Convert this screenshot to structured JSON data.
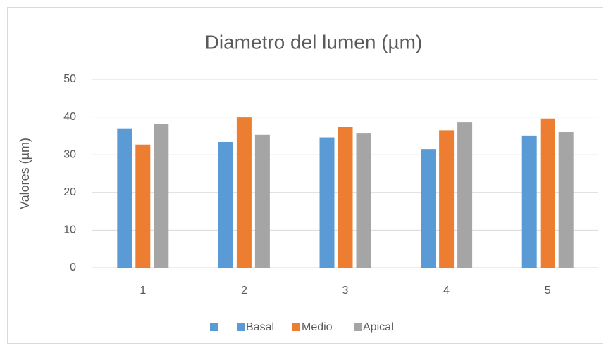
{
  "chart_data": {
    "type": "bar",
    "title": "Diametro del lumen (µm)",
    "y_label": "Valores (µm)",
    "categories": [
      "1",
      "2",
      "3",
      "4",
      "5"
    ],
    "series": [
      {
        "name": "Basal",
        "color": "#5b9bd5",
        "values": [
          37.0,
          33.4,
          34.6,
          31.5,
          35.1
        ]
      },
      {
        "name": "Medio",
        "color": "#ed7d31",
        "values": [
          32.7,
          39.9,
          37.5,
          36.5,
          39.6
        ]
      },
      {
        "name": "Apical",
        "color": "#a5a5a5",
        "values": [
          38.1,
          35.3,
          35.8,
          38.6,
          36.0
        ]
      }
    ],
    "ylim": [
      0,
      50
    ],
    "yticks": [
      0,
      10,
      20,
      30,
      40,
      50
    ],
    "grid": true,
    "legend": "bottom"
  }
}
